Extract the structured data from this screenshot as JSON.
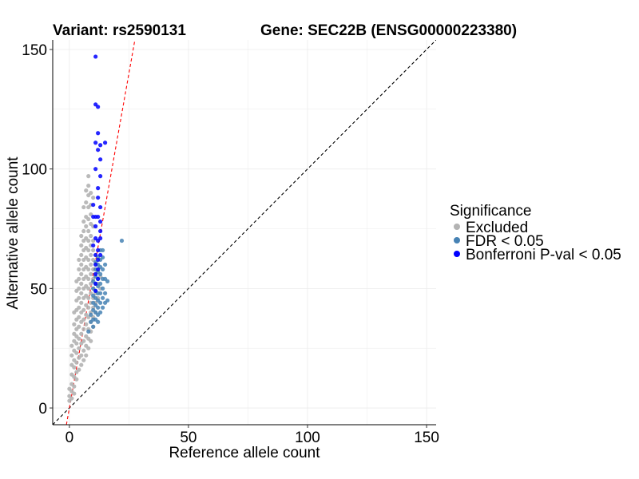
{
  "chart_data": {
    "type": "scatter",
    "title_left": "Variant: rs2590131",
    "title_right": "Gene: SEC22B (ENSG00000223380)",
    "xlabel": "Reference allele count",
    "ylabel": "Alternative allele count",
    "xlim": [
      -7,
      154
    ],
    "ylim": [
      -7,
      154
    ],
    "xticks": [
      "0",
      "50",
      "100",
      "150"
    ],
    "yticks": [
      "0",
      "50",
      "100",
      "150"
    ],
    "xtick_values": [
      0,
      50,
      100,
      150
    ],
    "ytick_values": [
      0,
      50,
      100,
      150
    ],
    "grid": true,
    "reference_lines": [
      {
        "kind": "identity",
        "slope": 1,
        "intercept": 0,
        "color": "#000000",
        "style": "dashed"
      },
      {
        "kind": "fit",
        "slope": 5.6,
        "intercept": 0,
        "color": "#ff0000",
        "style": "dashed"
      }
    ],
    "legend": {
      "title": "Significance",
      "position": "right",
      "entries": [
        {
          "label": "Excluded",
          "color": "#b3b3b3"
        },
        {
          "label": "FDR < 0.05",
          "color": "#4682b4"
        },
        {
          "label": "Bonferroni P-val < 0.05",
          "color": "#0000ff"
        }
      ]
    },
    "series": [
      {
        "name": "Excluded",
        "color": "#b3b3b3",
        "points": [
          [
            0,
            3
          ],
          [
            0,
            5
          ],
          [
            0,
            8
          ],
          [
            1,
            4
          ],
          [
            1,
            7
          ],
          [
            1,
            10
          ],
          [
            1,
            14
          ],
          [
            1,
            18
          ],
          [
            1,
            22
          ],
          [
            1,
            26
          ],
          [
            2,
            6
          ],
          [
            2,
            9
          ],
          [
            2,
            13
          ],
          [
            2,
            17
          ],
          [
            2,
            20
          ],
          [
            2,
            24
          ],
          [
            2,
            28
          ],
          [
            2,
            31
          ],
          [
            2,
            35
          ],
          [
            2,
            40
          ],
          [
            3,
            12
          ],
          [
            3,
            15
          ],
          [
            3,
            19
          ],
          [
            3,
            23
          ],
          [
            3,
            27
          ],
          [
            3,
            30
          ],
          [
            3,
            33
          ],
          [
            3,
            37
          ],
          [
            3,
            41
          ],
          [
            3,
            45
          ],
          [
            3,
            49
          ],
          [
            3,
            53
          ],
          [
            4,
            16
          ],
          [
            4,
            21
          ],
          [
            4,
            25
          ],
          [
            4,
            29
          ],
          [
            4,
            34
          ],
          [
            4,
            38
          ],
          [
            4,
            42
          ],
          [
            4,
            46
          ],
          [
            4,
            50
          ],
          [
            4,
            54
          ],
          [
            4,
            58
          ],
          [
            4,
            62
          ],
          [
            5,
            18
          ],
          [
            5,
            22
          ],
          [
            5,
            27
          ],
          [
            5,
            31
          ],
          [
            5,
            36
          ],
          [
            5,
            40
          ],
          [
            5,
            44
          ],
          [
            5,
            48
          ],
          [
            5,
            52
          ],
          [
            5,
            56
          ],
          [
            5,
            60
          ],
          [
            5,
            64
          ],
          [
            5,
            68
          ],
          [
            5,
            72
          ],
          [
            6,
            20
          ],
          [
            6,
            24
          ],
          [
            6,
            28
          ],
          [
            6,
            33
          ],
          [
            6,
            37
          ],
          [
            6,
            41
          ],
          [
            6,
            46
          ],
          [
            6,
            50
          ],
          [
            6,
            54
          ],
          [
            6,
            58
          ],
          [
            6,
            62
          ],
          [
            6,
            66
          ],
          [
            6,
            70
          ],
          [
            6,
            74
          ],
          [
            6,
            78
          ],
          [
            6,
            84
          ],
          [
            7,
            22
          ],
          [
            7,
            26
          ],
          [
            7,
            30
          ],
          [
            7,
            35
          ],
          [
            7,
            39
          ],
          [
            7,
            43
          ],
          [
            7,
            47
          ],
          [
            7,
            51
          ],
          [
            7,
            55
          ],
          [
            7,
            59
          ],
          [
            7,
            63
          ],
          [
            7,
            67
          ],
          [
            7,
            71
          ],
          [
            7,
            76
          ],
          [
            7,
            80
          ],
          [
            7,
            86
          ],
          [
            7,
            91
          ],
          [
            8,
            25
          ],
          [
            8,
            29
          ],
          [
            8,
            33
          ],
          [
            8,
            38
          ],
          [
            8,
            42
          ],
          [
            8,
            46
          ],
          [
            8,
            50
          ],
          [
            8,
            54
          ],
          [
            8,
            58
          ],
          [
            8,
            62
          ],
          [
            8,
            66
          ],
          [
            8,
            70
          ],
          [
            8,
            74
          ],
          [
            8,
            79
          ],
          [
            8,
            84
          ],
          [
            8,
            89
          ],
          [
            8,
            93
          ],
          [
            8,
            97
          ],
          [
            9,
            28
          ],
          [
            9,
            32
          ],
          [
            9,
            36
          ],
          [
            9,
            40
          ],
          [
            9,
            44
          ],
          [
            9,
            48
          ],
          [
            9,
            52
          ],
          [
            9,
            56
          ],
          [
            9,
            60
          ],
          [
            9,
            64
          ],
          [
            9,
            68
          ],
          [
            9,
            72
          ],
          [
            9,
            77
          ],
          [
            9,
            81
          ],
          [
            9,
            85
          ],
          [
            9,
            90
          ],
          [
            10,
            34
          ],
          [
            10,
            38
          ],
          [
            10,
            42
          ],
          [
            10,
            46
          ],
          [
            10,
            50
          ],
          [
            10,
            54
          ],
          [
            10,
            58
          ],
          [
            10,
            62
          ],
          [
            10,
            66
          ],
          [
            10,
            70
          ],
          [
            10,
            76
          ],
          [
            10,
            88
          ],
          [
            11,
            40
          ],
          [
            11,
            44
          ],
          [
            11,
            48
          ],
          [
            11,
            52
          ],
          [
            11,
            56
          ],
          [
            11,
            60
          ],
          [
            11,
            64
          ],
          [
            12,
            46
          ],
          [
            12,
            52
          ],
          [
            12,
            58
          ],
          [
            13,
            50
          ],
          [
            13,
            55
          ]
        ]
      },
      {
        "name": "FDR < 0.05",
        "color": "#4682b4",
        "points": [
          [
            8,
            32
          ],
          [
            9,
            36
          ],
          [
            9,
            39
          ],
          [
            10,
            34
          ],
          [
            10,
            37
          ],
          [
            10,
            41
          ],
          [
            10,
            44
          ],
          [
            10,
            47
          ],
          [
            10,
            50
          ],
          [
            10,
            53
          ],
          [
            11,
            37
          ],
          [
            11,
            40
          ],
          [
            11,
            43
          ],
          [
            11,
            46
          ],
          [
            11,
            49
          ],
          [
            11,
            52
          ],
          [
            11,
            55
          ],
          [
            11,
            58
          ],
          [
            11,
            61
          ],
          [
            12,
            36
          ],
          [
            12,
            39
          ],
          [
            12,
            42
          ],
          [
            12,
            45
          ],
          [
            12,
            48
          ],
          [
            12,
            51
          ],
          [
            12,
            54
          ],
          [
            12,
            57
          ],
          [
            12,
            60
          ],
          [
            12,
            63
          ],
          [
            13,
            40
          ],
          [
            13,
            44
          ],
          [
            13,
            48
          ],
          [
            13,
            52
          ],
          [
            13,
            56
          ],
          [
            13,
            59
          ],
          [
            13,
            62
          ],
          [
            13,
            66
          ],
          [
            14,
            42
          ],
          [
            14,
            46
          ],
          [
            14,
            50
          ],
          [
            14,
            54
          ],
          [
            14,
            58
          ],
          [
            14,
            63
          ],
          [
            14,
            66
          ],
          [
            15,
            44
          ],
          [
            15,
            48
          ],
          [
            15,
            54
          ],
          [
            15,
            60
          ],
          [
            16,
            45
          ],
          [
            16,
            53
          ],
          [
            22,
            70
          ]
        ]
      },
      {
        "name": "Bonferroni P-val < 0.05",
        "color": "#0000ff",
        "points": [
          [
            11,
            147
          ],
          [
            11,
            127
          ],
          [
            12,
            126
          ],
          [
            12,
            115
          ],
          [
            11,
            111
          ],
          [
            12,
            108
          ],
          [
            13,
            110
          ],
          [
            15,
            111
          ],
          [
            13,
            104
          ],
          [
            11,
            100
          ],
          [
            13,
            97
          ],
          [
            12,
            92
          ],
          [
            12,
            88
          ],
          [
            10,
            85
          ],
          [
            13,
            84
          ],
          [
            12,
            80
          ],
          [
            11,
            80
          ],
          [
            10,
            80
          ],
          [
            13,
            78
          ],
          [
            11,
            76
          ],
          [
            13,
            74
          ],
          [
            11,
            71
          ],
          [
            12,
            70
          ],
          [
            13,
            71
          ],
          [
            10,
            68
          ],
          [
            12,
            66
          ],
          [
            11,
            64
          ],
          [
            13,
            64
          ],
          [
            12,
            62
          ],
          [
            11,
            60
          ],
          [
            12,
            58
          ],
          [
            11,
            56
          ],
          [
            12,
            54
          ],
          [
            11,
            52
          ],
          [
            11,
            49
          ]
        ]
      }
    ]
  }
}
